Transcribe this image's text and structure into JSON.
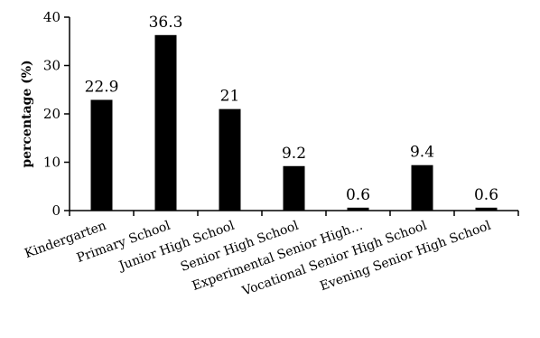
{
  "chart_data": {
    "type": "bar",
    "title": "",
    "xlabel": "",
    "ylabel": "percentage (%)",
    "ylim": [
      0,
      40
    ],
    "yticks": [
      0,
      10,
      20,
      30,
      40
    ],
    "grid": false,
    "categories": [
      "Kindergarten",
      "Primary School",
      "Junior High School",
      "Senior High School",
      "Experimental Senior High…",
      "Vocational Senior High School",
      "Evening Senior High School"
    ],
    "values": [
      22.9,
      36.3,
      21,
      9.2,
      0.6,
      9.4,
      0.6
    ],
    "data_labels": [
      "22.9",
      "36.3",
      "21",
      "9.2",
      "0.6",
      "9.4",
      "0.6"
    ],
    "bar_color": "#000000"
  }
}
